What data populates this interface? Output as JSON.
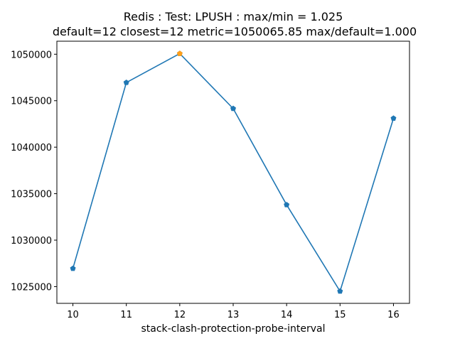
{
  "chart_data": {
    "type": "line",
    "title_line1": "Redis : Test: LPUSH : max/min = 1.025",
    "title_line2": "default=12 closest=12 metric=1050065.85 max/default=1.000",
    "xlabel": "stack-clash-protection-probe-interval",
    "ylabel": "",
    "x": [
      10,
      11,
      12,
      13,
      14,
      15,
      16
    ],
    "xticks": [
      "10",
      "11",
      "12",
      "13",
      "14",
      "15",
      "16"
    ],
    "xlim": [
      9.7,
      16.3
    ],
    "yticks": [
      1025000,
      1030000,
      1035000,
      1040000,
      1045000,
      1050000
    ],
    "ytick_labels": [
      "1025000",
      "1030000",
      "1035000",
      "1040000",
      "1045000",
      "1050000"
    ],
    "ylim": [
      1023200,
      1051400
    ],
    "grid": false,
    "series": [
      {
        "values": [
          1026950,
          1046950,
          1050066,
          1044150,
          1033800,
          1024500,
          1043100
        ],
        "color": "#1f77b4",
        "marker": "pentagon"
      }
    ],
    "highlight": {
      "x": 12,
      "y": 1050066,
      "color": "#ff9f1a"
    }
  }
}
